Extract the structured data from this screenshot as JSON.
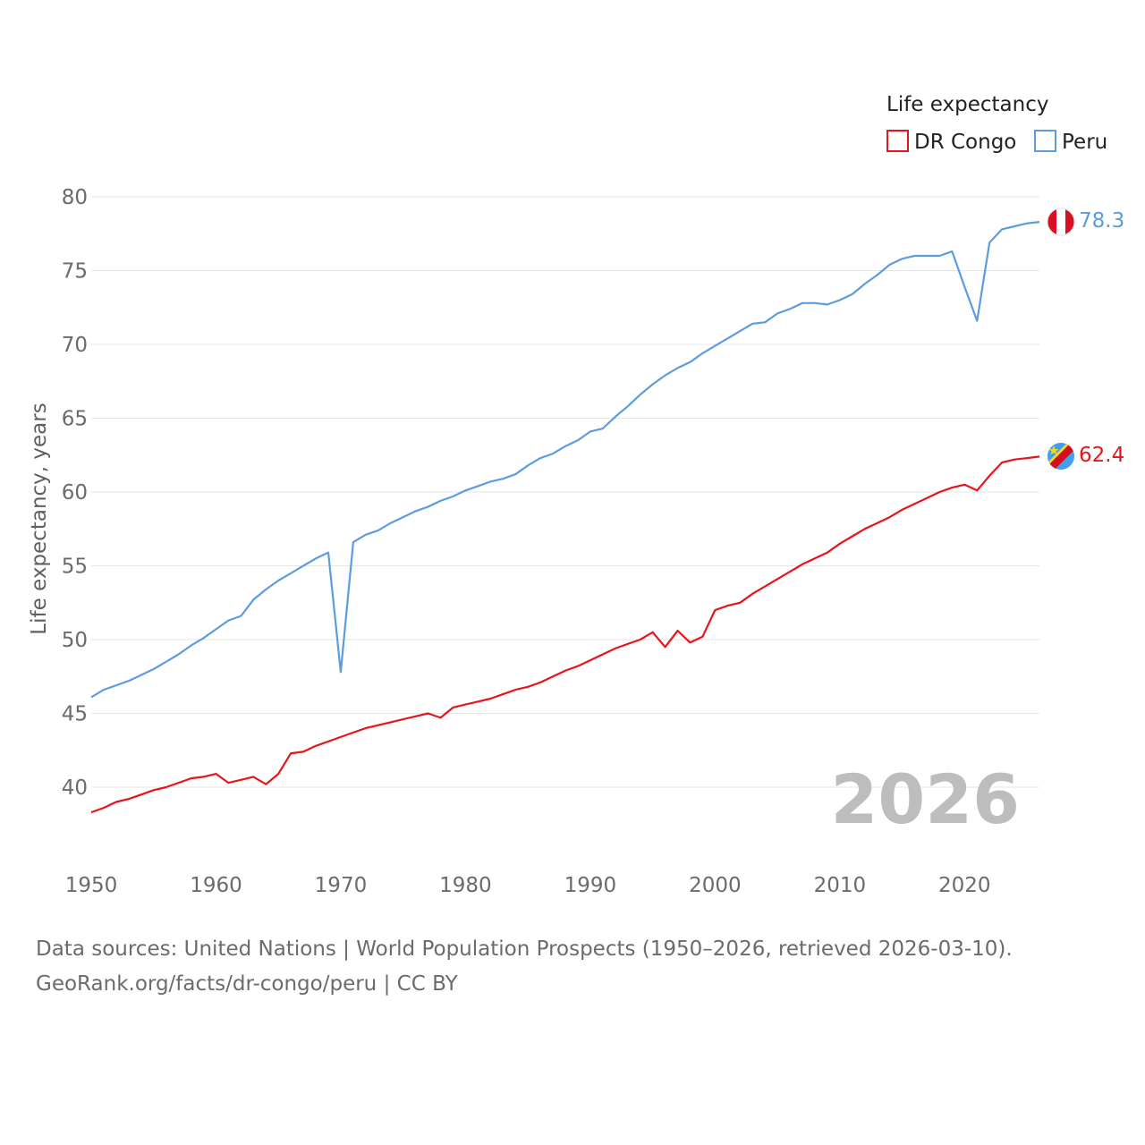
{
  "chart_data": {
    "type": "line",
    "ylabel": "Life expectancy, years",
    "xlabel": "",
    "xlim": [
      1950,
      2026
    ],
    "ylim": [
      36,
      82
    ],
    "x_ticks": [
      1950,
      1960,
      1970,
      1980,
      1990,
      2000,
      2010,
      2020
    ],
    "y_ticks": [
      40,
      45,
      50,
      55,
      60,
      65,
      70,
      75,
      80
    ],
    "grid": true,
    "legend": {
      "title": "Life expectancy",
      "placement": "top-right"
    },
    "year_watermark": "2026",
    "series": [
      {
        "name": "DR Congo",
        "color": "#e8141b",
        "end_label": "62.4",
        "flag": "dr-congo-flag-icon",
        "x": [
          1950,
          1951,
          1952,
          1953,
          1954,
          1955,
          1956,
          1957,
          1958,
          1959,
          1960,
          1961,
          1962,
          1963,
          1964,
          1965,
          1966,
          1967,
          1968,
          1969,
          1970,
          1971,
          1972,
          1973,
          1974,
          1975,
          1976,
          1977,
          1978,
          1979,
          1980,
          1981,
          1982,
          1983,
          1984,
          1985,
          1986,
          1987,
          1988,
          1989,
          1990,
          1991,
          1992,
          1993,
          1994,
          1995,
          1996,
          1997,
          1998,
          1999,
          2000,
          2001,
          2002,
          2003,
          2004,
          2005,
          2006,
          2007,
          2008,
          2009,
          2010,
          2011,
          2012,
          2013,
          2014,
          2015,
          2016,
          2017,
          2018,
          2019,
          2020,
          2021,
          2022,
          2023,
          2024,
          2025,
          2026
        ],
        "values": [
          38.3,
          38.6,
          39.0,
          39.2,
          39.5,
          39.8,
          40.0,
          40.3,
          40.6,
          40.7,
          40.9,
          40.3,
          40.5,
          40.7,
          40.2,
          40.9,
          42.3,
          42.4,
          42.8,
          43.1,
          43.4,
          43.7,
          44.0,
          44.2,
          44.4,
          44.6,
          44.8,
          45.0,
          44.7,
          45.4,
          45.6,
          45.8,
          46.0,
          46.3,
          46.6,
          46.8,
          47.1,
          47.5,
          47.9,
          48.2,
          48.6,
          49.0,
          49.4,
          49.7,
          50.0,
          50.5,
          49.5,
          50.6,
          49.8,
          50.2,
          52.0,
          52.3,
          52.5,
          53.1,
          53.6,
          54.1,
          54.6,
          55.1,
          55.5,
          55.9,
          56.5,
          57.0,
          57.5,
          57.9,
          58.3,
          58.8,
          59.2,
          59.6,
          60.0,
          60.3,
          60.5,
          60.1,
          61.1,
          62.0,
          62.2,
          62.3,
          62.4
        ]
      },
      {
        "name": "Peru",
        "color": "#5c9ce0",
        "end_label": "78.3",
        "flag": "peru-flag-icon",
        "x": [
          1950,
          1951,
          1952,
          1953,
          1954,
          1955,
          1956,
          1957,
          1958,
          1959,
          1960,
          1961,
          1962,
          1963,
          1964,
          1965,
          1966,
          1967,
          1968,
          1969,
          1970,
          1971,
          1972,
          1973,
          1974,
          1975,
          1976,
          1977,
          1978,
          1979,
          1980,
          1981,
          1982,
          1983,
          1984,
          1985,
          1986,
          1987,
          1988,
          1989,
          1990,
          1991,
          1992,
          1993,
          1994,
          1995,
          1996,
          1997,
          1998,
          1999,
          2000,
          2001,
          2002,
          2003,
          2004,
          2005,
          2006,
          2007,
          2008,
          2009,
          2010,
          2011,
          2012,
          2013,
          2014,
          2015,
          2016,
          2017,
          2018,
          2019,
          2020,
          2021,
          2022,
          2023,
          2024,
          2025,
          2026
        ],
        "values": [
          46.1,
          46.6,
          46.9,
          47.2,
          47.6,
          48.0,
          48.5,
          49.0,
          49.6,
          50.1,
          50.7,
          51.3,
          51.6,
          52.7,
          53.4,
          54.0,
          54.5,
          55.0,
          55.5,
          55.9,
          47.8,
          56.6,
          57.1,
          57.4,
          57.9,
          58.3,
          58.7,
          59.0,
          59.4,
          59.7,
          60.1,
          60.4,
          60.7,
          60.9,
          61.2,
          61.8,
          62.3,
          62.6,
          63.1,
          63.5,
          64.1,
          64.3,
          65.1,
          65.8,
          66.6,
          67.3,
          67.9,
          68.4,
          68.8,
          69.4,
          69.9,
          70.4,
          70.9,
          71.4,
          71.5,
          72.1,
          72.4,
          72.8,
          72.8,
          72.7,
          73.0,
          73.4,
          74.1,
          74.7,
          75.4,
          75.8,
          76.0,
          76.0,
          76.0,
          76.3,
          73.9,
          71.6,
          76.9,
          77.8,
          78.0,
          78.2,
          78.3
        ]
      }
    ]
  },
  "footer": {
    "line1": "Data sources: United Nations | World Population Prospects (1950–2026, retrieved 2026-03-10).",
    "line2": "GeoRank.org/facts/dr-congo/peru | CC BY"
  }
}
